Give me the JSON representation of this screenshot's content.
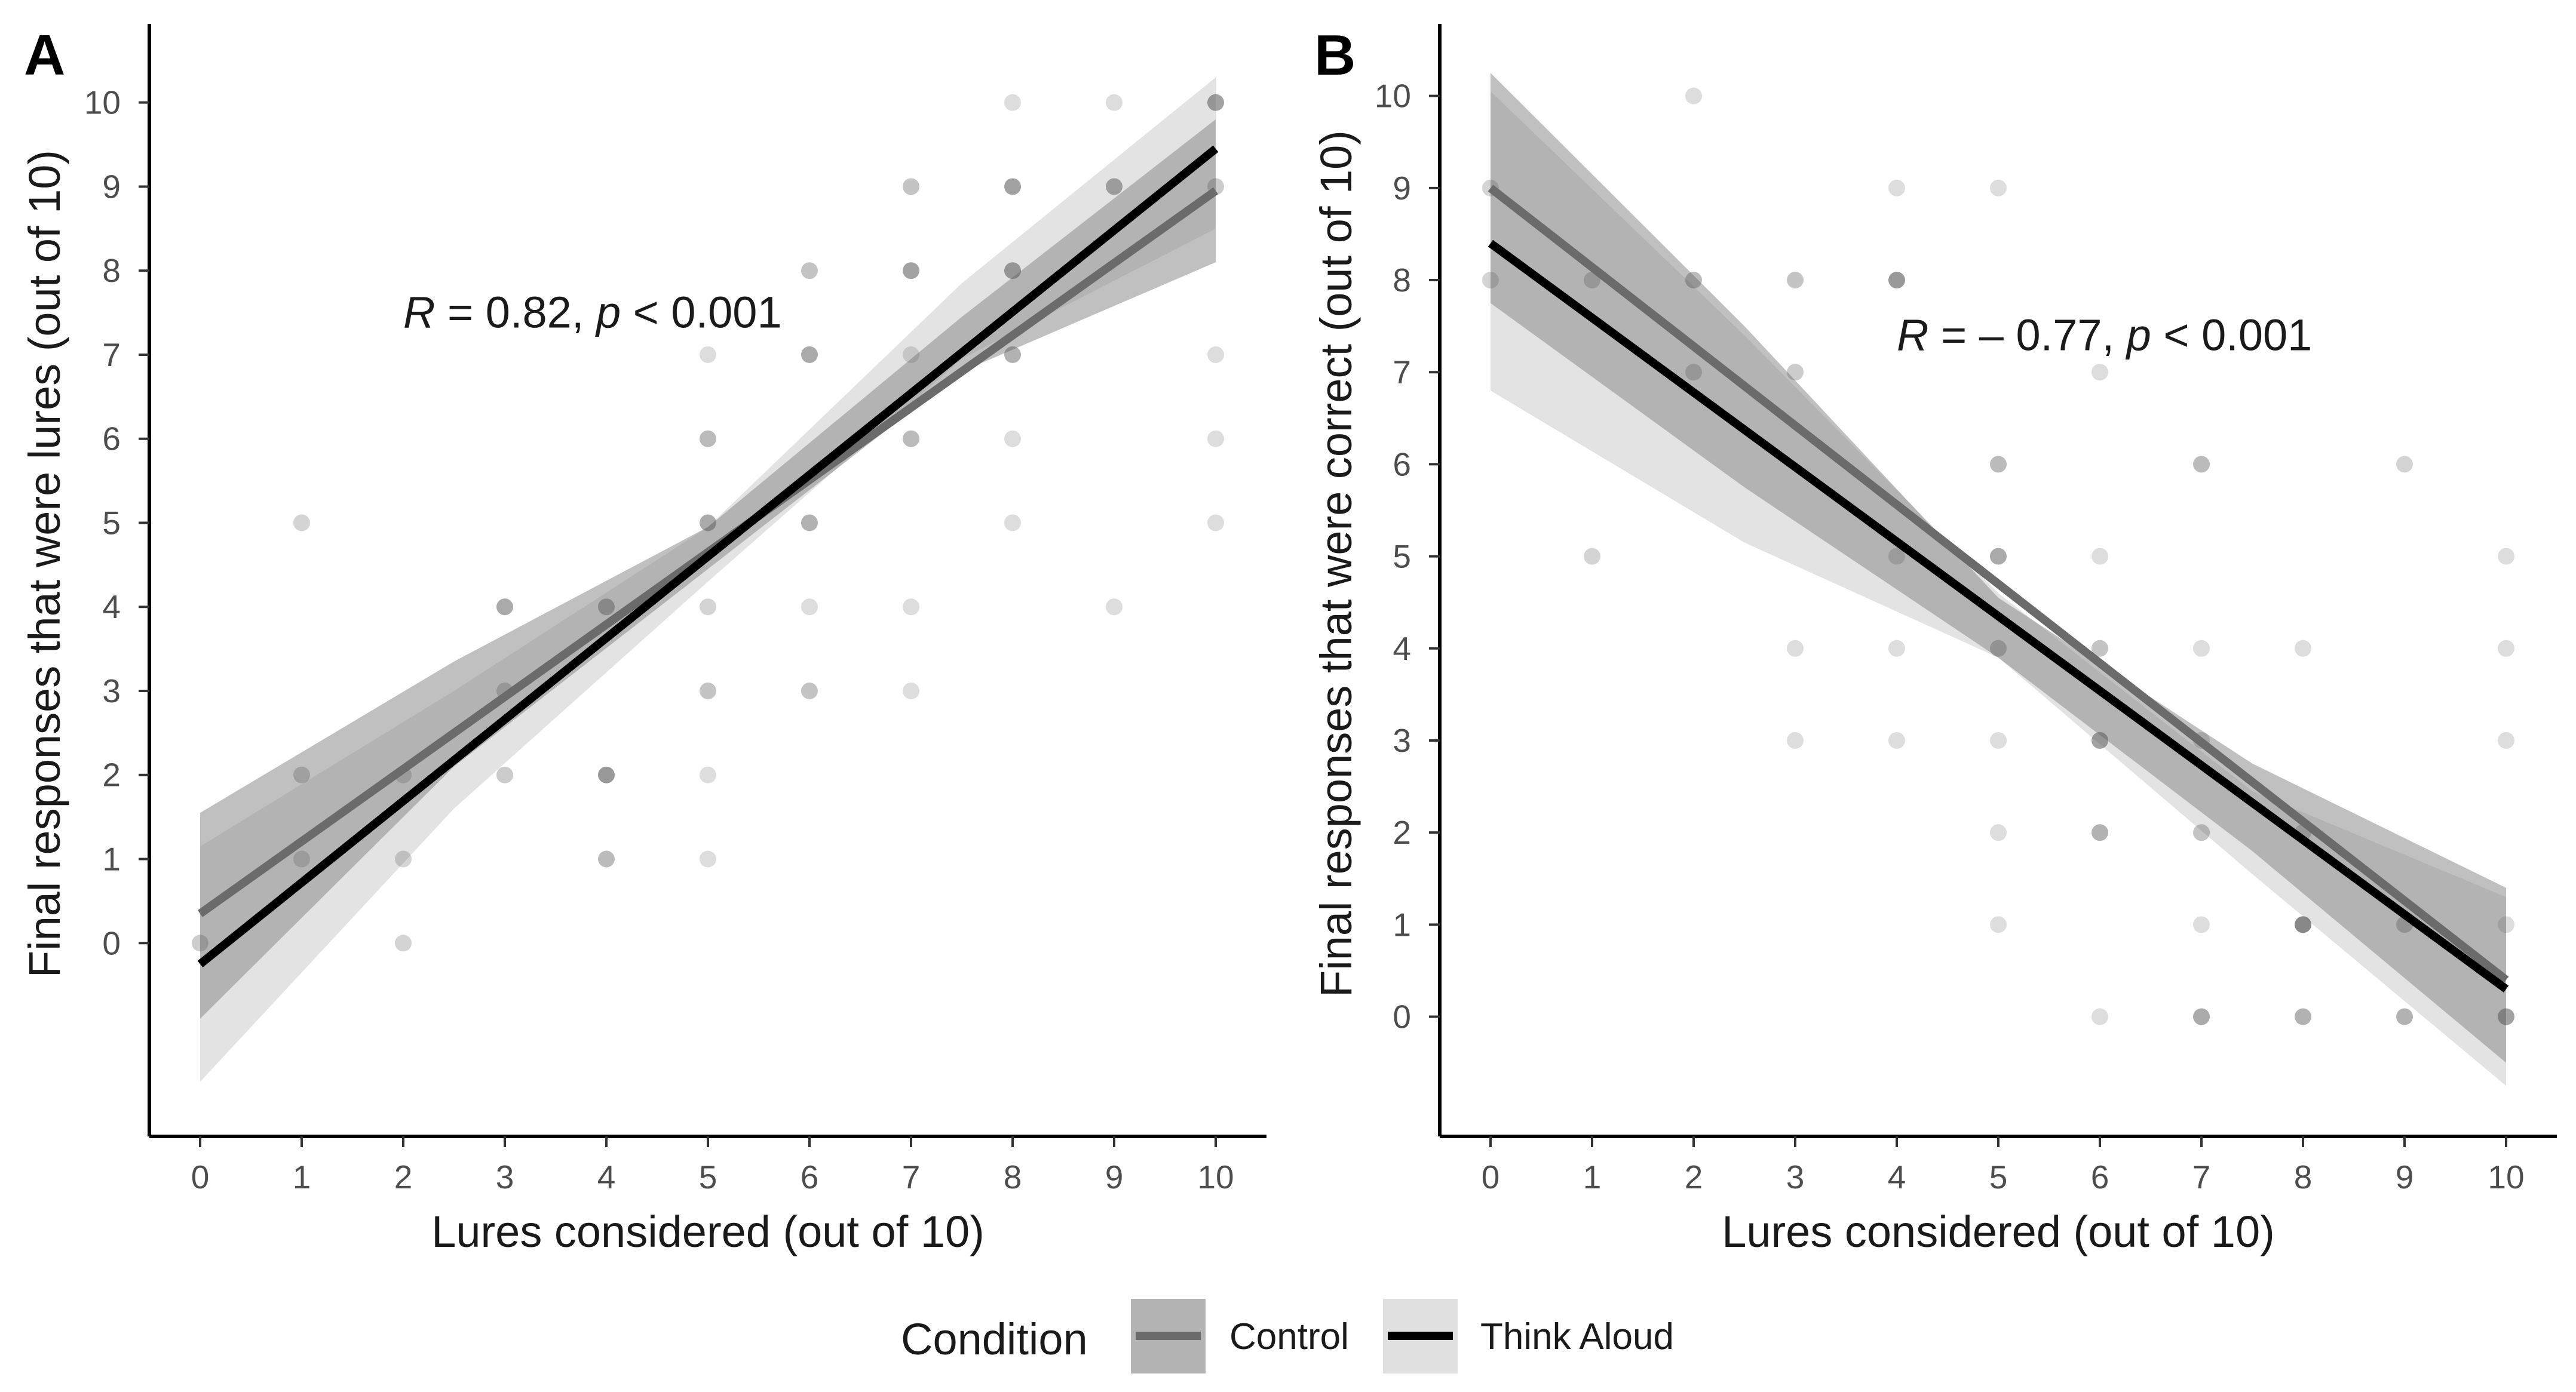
{
  "chart_data": [
    {
      "type": "scatter",
      "panel": "A",
      "xlabel": "Lures considered (out of 10)",
      "ylabel": "Final responses that were lures (out of 10)",
      "xlim": [
        -0.5,
        10.5
      ],
      "ylim": [
        -2.3,
        10.9
      ],
      "xticks": [
        "0",
        "1",
        "2",
        "3",
        "4",
        "5",
        "6",
        "7",
        "8",
        "9",
        "10"
      ],
      "yticks": [
        "0",
        "1",
        "2",
        "3",
        "4",
        "5",
        "6",
        "7",
        "8",
        "9",
        "10"
      ],
      "annotation": {
        "r_sym": "R",
        "r_text": " = 0.82, ",
        "p_sym": "p",
        "p_text": " < 0.001",
        "x": 2.0,
        "y": 7.5
      },
      "series": [
        {
          "name": "Control",
          "intercept": 0.35,
          "slope": 0.86,
          "ci_lower": [
            -0.9,
            2.1,
            4.45,
            6.8,
            8.1
          ],
          "ci_upper": [
            1.55,
            3.35,
            4.95,
            7.45,
            9.8
          ]
        },
        {
          "name": "Think Aloud",
          "intercept": -0.25,
          "slope": 0.97,
          "ci_lower": [
            -1.65,
            1.6,
            4.3,
            6.95,
            8.5
          ],
          "ci_upper": [
            1.15,
            3.0,
            4.95,
            7.85,
            10.3
          ]
        }
      ],
      "points": [
        {
          "x": 0,
          "y": 0,
          "a": 0.3
        },
        {
          "x": 1,
          "y": 5,
          "a": 0.25
        },
        {
          "x": 1,
          "y": 2,
          "a": 0.3
        },
        {
          "x": 1,
          "y": 1,
          "a": 0.25
        },
        {
          "x": 2,
          "y": 2,
          "a": 0.25
        },
        {
          "x": 2,
          "y": 1,
          "a": 0.25
        },
        {
          "x": 2,
          "y": 0,
          "a": 0.25
        },
        {
          "x": 3,
          "y": 4,
          "a": 0.5
        },
        {
          "x": 3,
          "y": 3,
          "a": 0.3
        },
        {
          "x": 3,
          "y": 2,
          "a": 0.3
        },
        {
          "x": 4,
          "y": 4,
          "a": 0.45
        },
        {
          "x": 4,
          "y": 2,
          "a": 0.6
        },
        {
          "x": 4,
          "y": 1,
          "a": 0.4
        },
        {
          "x": 5,
          "y": 7,
          "a": 0.2
        },
        {
          "x": 5,
          "y": 6,
          "a": 0.4
        },
        {
          "x": 5,
          "y": 5,
          "a": 0.5
        },
        {
          "x": 5,
          "y": 4,
          "a": 0.25
        },
        {
          "x": 5,
          "y": 3,
          "a": 0.35
        },
        {
          "x": 5,
          "y": 2,
          "a": 0.2
        },
        {
          "x": 5,
          "y": 1,
          "a": 0.2
        },
        {
          "x": 6,
          "y": 8,
          "a": 0.35
        },
        {
          "x": 6,
          "y": 7,
          "a": 0.5
        },
        {
          "x": 6,
          "y": 5,
          "a": 0.45
        },
        {
          "x": 6,
          "y": 4,
          "a": 0.2
        },
        {
          "x": 6,
          "y": 3,
          "a": 0.35
        },
        {
          "x": 7,
          "y": 9,
          "a": 0.35
        },
        {
          "x": 7,
          "y": 8,
          "a": 0.55
        },
        {
          "x": 7,
          "y": 7,
          "a": 0.2
        },
        {
          "x": 7,
          "y": 6,
          "a": 0.4
        },
        {
          "x": 7,
          "y": 4,
          "a": 0.2
        },
        {
          "x": 7,
          "y": 3,
          "a": 0.2
        },
        {
          "x": 8,
          "y": 10,
          "a": 0.2
        },
        {
          "x": 8,
          "y": 9,
          "a": 0.55
        },
        {
          "x": 8,
          "y": 8,
          "a": 0.55
        },
        {
          "x": 8,
          "y": 7,
          "a": 0.45
        },
        {
          "x": 8,
          "y": 6,
          "a": 0.2
        },
        {
          "x": 8,
          "y": 5,
          "a": 0.2
        },
        {
          "x": 9,
          "y": 10,
          "a": 0.2
        },
        {
          "x": 9,
          "y": 9,
          "a": 0.5
        },
        {
          "x": 9,
          "y": 4,
          "a": 0.2
        },
        {
          "x": 10,
          "y": 10,
          "a": 0.55
        },
        {
          "x": 10,
          "y": 9,
          "a": 0.3
        },
        {
          "x": 10,
          "y": 7,
          "a": 0.2
        },
        {
          "x": 10,
          "y": 6,
          "a": 0.2
        },
        {
          "x": 10,
          "y": 5,
          "a": 0.2
        }
      ]
    },
    {
      "type": "scatter",
      "panel": "B",
      "xlabel": "Lures considered (out of 10)",
      "ylabel": "Final responses that were correct (out of 10)",
      "xlim": [
        -0.5,
        10.5
      ],
      "ylim": [
        -1.3,
        10.75
      ],
      "xticks": [
        "0",
        "1",
        "2",
        "3",
        "4",
        "5",
        "6",
        "7",
        "8",
        "9",
        "10"
      ],
      "yticks": [
        "0",
        "1",
        "2",
        "3",
        "4",
        "5",
        "6",
        "7",
        "8",
        "9",
        "10"
      ],
      "annotation": {
        "r_sym": "R",
        "r_text": " = – 0.77, ",
        "p_sym": "p",
        "p_text": " < 0.001",
        "x": 4.0,
        "y": 7.4
      },
      "series": [
        {
          "name": "Control",
          "intercept": 9.0,
          "slope": -0.86,
          "ci_lower": [
            7.75,
            5.75,
            3.9,
            1.8,
            -0.5
          ],
          "ci_upper": [
            10.25,
            7.5,
            4.55,
            2.75,
            1.4
          ]
        },
        {
          "name": "Think Aloud",
          "intercept": 8.4,
          "slope": -0.81,
          "ci_lower": [
            6.8,
            5.15,
            3.9,
            1.55,
            -0.75
          ],
          "ci_upper": [
            10.05,
            7.4,
            4.6,
            2.45,
            1.3
          ]
        }
      ],
      "points": [
        {
          "x": 0,
          "y": 9,
          "a": 0.25
        },
        {
          "x": 0,
          "y": 8,
          "a": 0.25
        },
        {
          "x": 1,
          "y": 8,
          "a": 0.3
        },
        {
          "x": 1,
          "y": 5,
          "a": 0.25
        },
        {
          "x": 2,
          "y": 10,
          "a": 0.2
        },
        {
          "x": 2,
          "y": 8,
          "a": 0.4
        },
        {
          "x": 2,
          "y": 7,
          "a": 0.3
        },
        {
          "x": 3,
          "y": 8,
          "a": 0.35
        },
        {
          "x": 3,
          "y": 7,
          "a": 0.3
        },
        {
          "x": 3,
          "y": 4,
          "a": 0.2
        },
        {
          "x": 3,
          "y": 3,
          "a": 0.2
        },
        {
          "x": 4,
          "y": 9,
          "a": 0.2
        },
        {
          "x": 4,
          "y": 8,
          "a": 0.6
        },
        {
          "x": 4,
          "y": 5,
          "a": 0.25
        },
        {
          "x": 4,
          "y": 4,
          "a": 0.2
        },
        {
          "x": 4,
          "y": 3,
          "a": 0.2
        },
        {
          "x": 5,
          "y": 9,
          "a": 0.2
        },
        {
          "x": 5,
          "y": 6,
          "a": 0.4
        },
        {
          "x": 5,
          "y": 5,
          "a": 0.5
        },
        {
          "x": 5,
          "y": 4,
          "a": 0.35
        },
        {
          "x": 5,
          "y": 3,
          "a": 0.2
        },
        {
          "x": 5,
          "y": 2,
          "a": 0.2
        },
        {
          "x": 5,
          "y": 1,
          "a": 0.2
        },
        {
          "x": 6,
          "y": 7,
          "a": 0.2
        },
        {
          "x": 6,
          "y": 5,
          "a": 0.2
        },
        {
          "x": 6,
          "y": 4,
          "a": 0.35
        },
        {
          "x": 6,
          "y": 3,
          "a": 0.55
        },
        {
          "x": 6,
          "y": 2,
          "a": 0.45
        },
        {
          "x": 6,
          "y": 0,
          "a": 0.2
        },
        {
          "x": 7,
          "y": 6,
          "a": 0.4
        },
        {
          "x": 7,
          "y": 4,
          "a": 0.2
        },
        {
          "x": 7,
          "y": 3,
          "a": 0.25
        },
        {
          "x": 7,
          "y": 2,
          "a": 0.35
        },
        {
          "x": 7,
          "y": 1,
          "a": 0.2
        },
        {
          "x": 7,
          "y": 0,
          "a": 0.5
        },
        {
          "x": 8,
          "y": 4,
          "a": 0.2
        },
        {
          "x": 8,
          "y": 2,
          "a": 0.3
        },
        {
          "x": 8,
          "y": 1,
          "a": 0.7
        },
        {
          "x": 8,
          "y": 0,
          "a": 0.45
        },
        {
          "x": 9,
          "y": 6,
          "a": 0.25
        },
        {
          "x": 9,
          "y": 1,
          "a": 0.35
        },
        {
          "x": 9,
          "y": 0,
          "a": 0.45
        },
        {
          "x": 10,
          "y": 5,
          "a": 0.2
        },
        {
          "x": 10,
          "y": 4,
          "a": 0.2
        },
        {
          "x": 10,
          "y": 3,
          "a": 0.2
        },
        {
          "x": 10,
          "y": 1,
          "a": 0.2
        },
        {
          "x": 10,
          "y": 0,
          "a": 0.55
        }
      ]
    }
  ],
  "legend": {
    "title": "Condition",
    "items": [
      {
        "label": "Control",
        "line_color": "#6b6b6b",
        "box_color": "#b3b3b3"
      },
      {
        "label": "Think Aloud",
        "line_color": "#000000",
        "box_color": "#e0e0e0"
      }
    ]
  },
  "colors": {
    "control_line": "#6b6b6b",
    "control_band": "#8c8c8c",
    "think_line": "#000000",
    "think_band": "#c8c8c8",
    "point": "#555555",
    "axis": "#000000"
  }
}
